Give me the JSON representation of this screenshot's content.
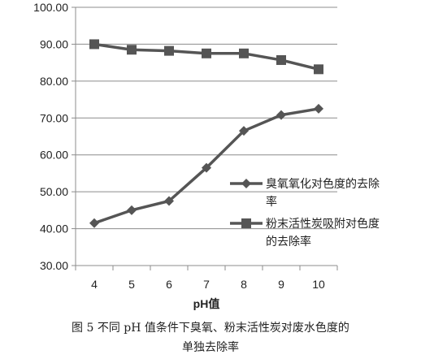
{
  "chart_data": {
    "type": "line",
    "x": [
      4,
      5,
      6,
      7,
      8,
      9,
      10
    ],
    "xlabel": "pH值",
    "ylabel": "",
    "ylim": [
      30,
      100
    ],
    "yticks": [
      "30.00",
      "40.00",
      "50.00",
      "60.00",
      "70.00",
      "80.00",
      "90.00",
      "100.00"
    ],
    "grid": "horizontal",
    "legend_position": "right",
    "series": [
      {
        "name": "臭氧氧化对色度的去除率",
        "marker": "diamond",
        "values": [
          41.5,
          45.0,
          47.5,
          56.5,
          66.5,
          70.8,
          72.5
        ],
        "color": "#555555"
      },
      {
        "name": "粉末活性炭吸附对色度的去除率",
        "marker": "square",
        "values": [
          90.0,
          88.5,
          88.2,
          87.5,
          87.5,
          85.7,
          83.2
        ],
        "color": "#555555"
      }
    ]
  },
  "caption": {
    "line1": "图 5   不同 pH 值条件下臭氧、粉末活性炭对废水色度的",
    "line2": "单独去除率"
  }
}
